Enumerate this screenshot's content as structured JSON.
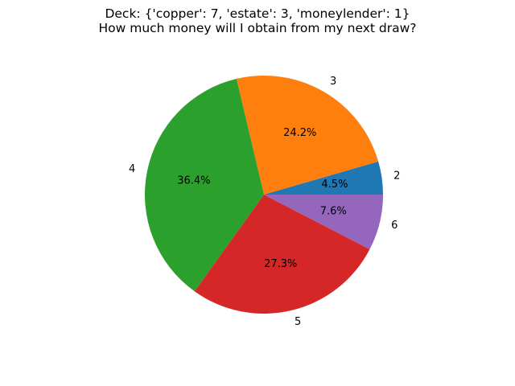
{
  "chart_data": {
    "type": "pie",
    "title_line1": "Deck: {'copper': 7, 'estate': 3, 'moneylender': 1}",
    "title_line2": "How much money will I obtain from my next draw?",
    "categories": [
      "2",
      "3",
      "4",
      "5",
      "6"
    ],
    "values": [
      4.5,
      24.2,
      36.4,
      27.3,
      7.6
    ],
    "pct_labels": [
      "4.5%",
      "24.2%",
      "36.4%",
      "27.3%",
      "7.6%"
    ],
    "colors": [
      "#1f77b4",
      "#ff7f0e",
      "#2ca02c",
      "#d62728",
      "#9467bd"
    ],
    "start_angle_deg": 0,
    "direction": "counterclockwise"
  }
}
